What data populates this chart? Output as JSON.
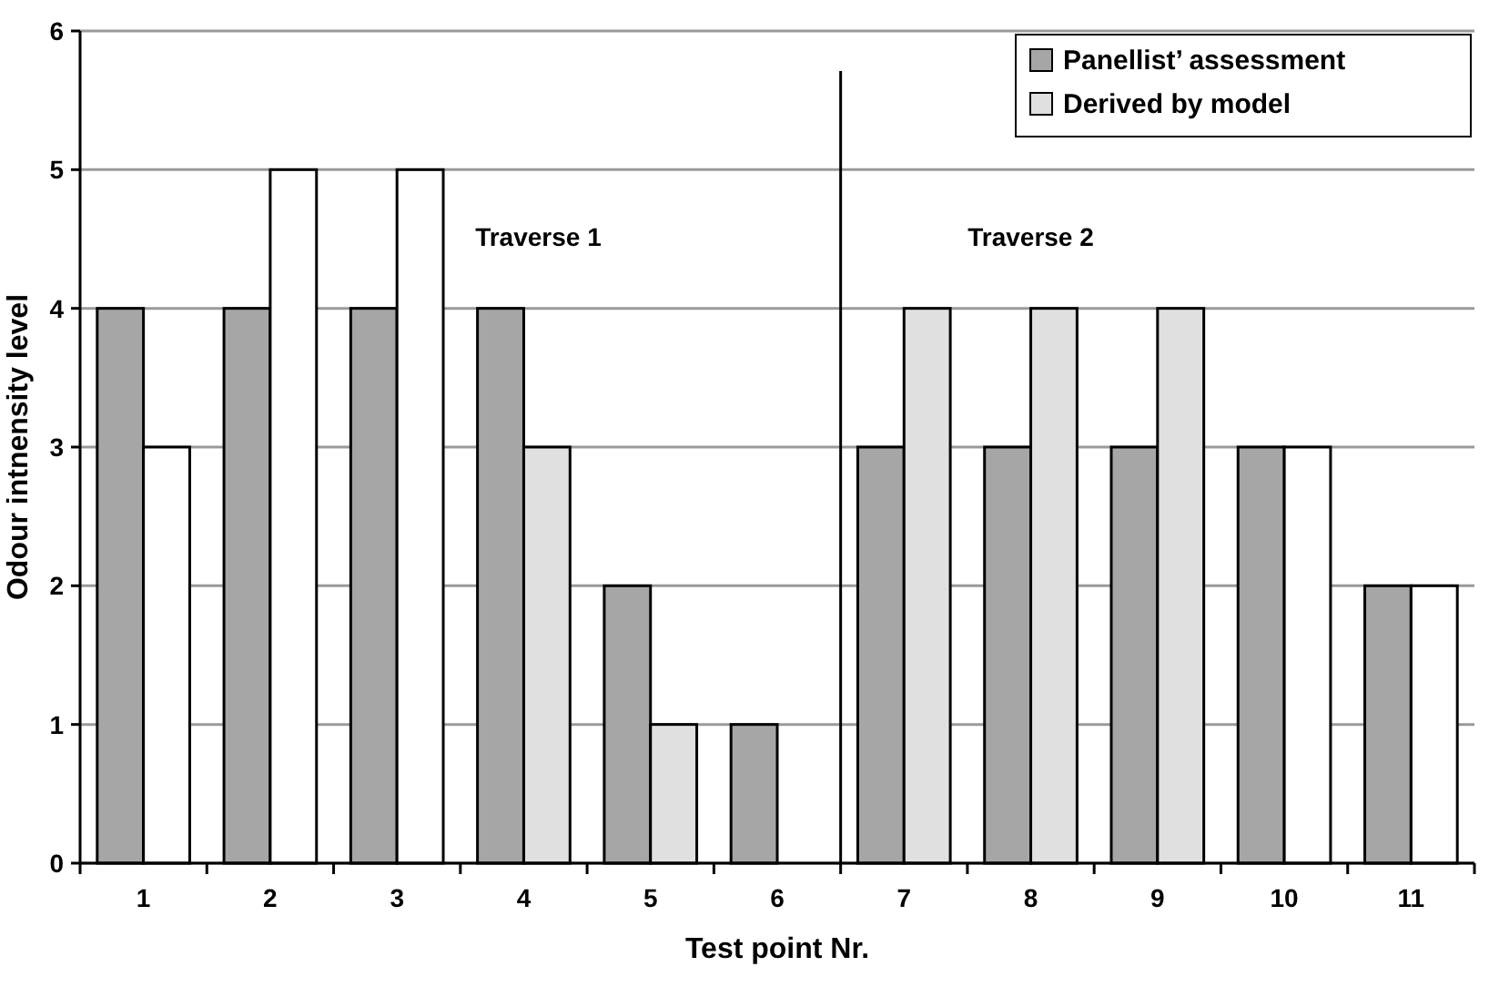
{
  "chart_data": {
    "type": "bar",
    "xlabel": "Test point Nr.",
    "ylabel": "Odour intnensity level",
    "x": [
      1,
      2,
      3,
      4,
      5,
      6,
      7,
      8,
      9,
      10,
      11
    ],
    "xlim": [
      0.5,
      11.5
    ],
    "xticks": [
      1,
      2,
      3,
      4,
      5,
      6,
      7,
      8,
      9,
      10,
      11
    ],
    "series": [
      {
        "name": "Panellist’ assessment",
        "color": "#a6a6a6",
        "values": [
          4,
          4,
          4,
          4,
          2,
          1,
          3,
          3,
          3,
          3,
          2
        ]
      },
      {
        "name": "Derived by model",
        "color": "#e0e0e0",
        "colors": [
          "#ffffff",
          "#ffffff",
          "#ffffff",
          "#e0e0e0",
          "#e0e0e0",
          "#e0e0e0",
          "#e0e0e0",
          "#e0e0e0",
          "#e0e0e0",
          "#ffffff",
          "#ffffff"
        ],
        "values": [
          3,
          5,
          5,
          3,
          1,
          0,
          4,
          4,
          4,
          3,
          2
        ]
      }
    ],
    "ylim": [
      0,
      6
    ],
    "yticks": [
      0,
      1,
      2,
      3,
      4,
      5,
      6
    ],
    "grid": "y",
    "legend": "top right",
    "ref_lines": [
      {
        "axis": "x",
        "value": 6.5,
        "color": "#000000"
      }
    ],
    "annotations": [
      "Traverse 1",
      "Traverse 2"
    ]
  }
}
